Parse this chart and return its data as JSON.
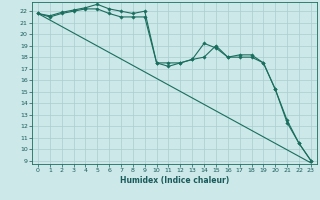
{
  "xlabel": "Humidex (Indice chaleur)",
  "bg_color": "#cce8e8",
  "grid_color": "#aacece",
  "line_color": "#1a6e5e",
  "xlim": [
    -0.5,
    23.5
  ],
  "ylim": [
    8.7,
    22.8
  ],
  "yticks": [
    9,
    10,
    11,
    12,
    13,
    14,
    15,
    16,
    17,
    18,
    19,
    20,
    21,
    22
  ],
  "xticks": [
    0,
    1,
    2,
    3,
    4,
    5,
    6,
    7,
    8,
    9,
    10,
    11,
    12,
    13,
    14,
    15,
    16,
    17,
    18,
    19,
    20,
    21,
    22,
    23
  ],
  "line1_x": [
    0,
    1,
    2,
    3,
    4,
    5,
    6,
    7,
    8,
    9,
    10,
    11,
    12,
    13,
    14,
    15,
    16,
    17,
    18,
    19,
    20,
    21,
    22,
    23
  ],
  "line1_y": [
    21.8,
    21.6,
    21.9,
    22.1,
    22.3,
    22.6,
    22.2,
    22.0,
    21.8,
    22.0,
    17.5,
    17.5,
    17.5,
    17.8,
    19.2,
    18.8,
    18.0,
    18.0,
    18.0,
    17.5,
    15.2,
    12.5,
    10.5,
    9.0
  ],
  "line2_x": [
    0,
    1,
    2,
    3,
    4,
    5,
    6,
    7,
    8,
    9,
    10,
    11,
    12,
    13,
    14,
    15,
    16,
    17,
    18,
    19,
    20,
    21,
    22,
    23
  ],
  "line2_y": [
    21.8,
    21.5,
    21.8,
    22.0,
    22.2,
    22.2,
    21.8,
    21.5,
    21.5,
    21.5,
    17.5,
    17.2,
    17.5,
    17.8,
    18.0,
    19.0,
    18.0,
    18.2,
    18.2,
    17.5,
    15.2,
    12.3,
    10.5,
    9.0
  ],
  "line3_x": [
    0,
    23
  ],
  "line3_y": [
    21.8,
    8.8
  ],
  "marker_style": "D",
  "markersize": 1.8,
  "linewidth": 0.8
}
